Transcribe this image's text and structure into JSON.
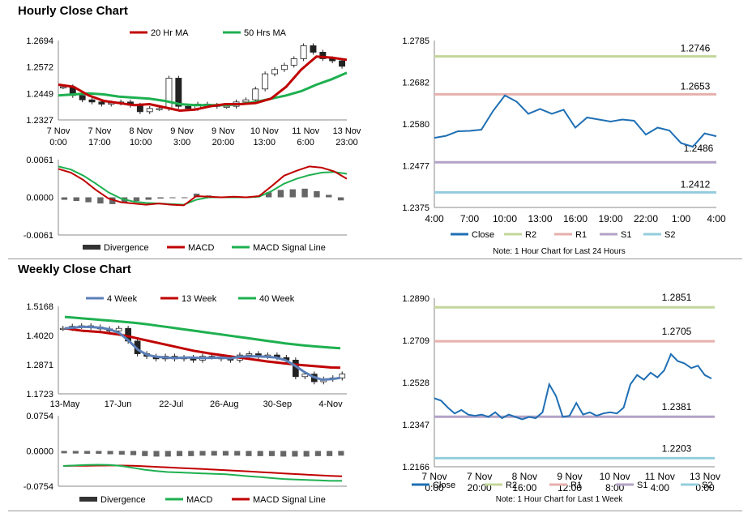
{
  "titles": {
    "hourly": "Hourly Close Chart",
    "weekly": "Weekly Close Chart"
  },
  "colors": {
    "red": "#c00000",
    "green": "#1eb050",
    "blue": "#1f6fb4",
    "dark": "#333333",
    "r2": "#c3d69b",
    "r1": "#e6b0ad",
    "s1": "#b3a2c7",
    "s2": "#93cddd",
    "steel": "#5b7fb8",
    "grey": "#666666"
  },
  "chart_data": [
    {
      "id": "hourly-price",
      "type": "candlestick",
      "yticks": [
        "1.2694",
        "1.2572",
        "1.2449",
        "1.2327"
      ],
      "ylim": [
        1.2327,
        1.2694
      ],
      "xticks": [
        [
          "7 Nov",
          "0:00"
        ],
        [
          "7 Nov",
          "17:00"
        ],
        [
          "8 Nov",
          "10:00"
        ],
        [
          "9 Nov",
          "3:00"
        ],
        [
          "9 Nov",
          "20:00"
        ],
        [
          "10 Nov",
          "13:00"
        ],
        [
          "11 Nov",
          "6:00"
        ],
        [
          "13 Nov",
          "23:00"
        ]
      ],
      "legend": [
        "20 Hr MA",
        "50 Hrs MA"
      ],
      "series": [
        {
          "name": "20 Hr MA",
          "values": [
            1.249,
            1.248,
            1.244,
            1.2415,
            1.2405,
            1.2395,
            1.24,
            1.2385,
            1.237,
            1.2375,
            1.239,
            1.24,
            1.24,
            1.2405,
            1.2425,
            1.248,
            1.256,
            1.262,
            1.2615,
            1.2605
          ]
        },
        {
          "name": "50 Hrs MA",
          "values": [
            1.244,
            1.2445,
            1.245,
            1.2445,
            1.2435,
            1.243,
            1.2425,
            1.2415,
            1.24,
            1.2395,
            1.2395,
            1.2395,
            1.24,
            1.241,
            1.2425,
            1.244,
            1.246,
            1.249,
            1.2515,
            1.2545
          ]
        }
      ],
      "close": [
        1.248,
        1.244,
        1.242,
        1.241,
        1.24,
        1.2405,
        1.241,
        1.2395,
        1.2365,
        1.238,
        1.238,
        1.252,
        1.239,
        1.238,
        1.24,
        1.2395,
        1.239,
        1.239,
        1.241,
        1.242,
        1.247,
        1.254,
        1.256,
        1.258,
        1.261,
        1.267,
        1.264,
        1.261,
        1.26,
        1.2575
      ]
    },
    {
      "id": "hourly-macd",
      "type": "bar+line",
      "yticks": [
        "0.0061",
        "0.0000",
        "-0.0061"
      ],
      "ylim": [
        -0.0061,
        0.0061
      ],
      "legend": [
        "Divergence",
        "MACD",
        "MACD Signal Line"
      ],
      "series": [
        {
          "name": "MACD",
          "values": [
            0.0046,
            0.004,
            0.0028,
            0.0012,
            -0.0002,
            -0.0008,
            -0.001,
            -0.0012,
            -0.001,
            -0.0012,
            -0.0013,
            0.0002,
            0.0001,
            0.0,
            0.0001,
            0.0,
            0.0002,
            0.0018,
            0.0035,
            0.0043,
            0.005,
            0.0048,
            0.0042,
            0.003
          ]
        },
        {
          "name": "MACD Signal Line",
          "values": [
            0.005,
            0.0045,
            0.0035,
            0.0022,
            0.0008,
            -0.0002,
            -0.0007,
            -0.0009,
            -0.001,
            -0.0011,
            -0.0012,
            -0.0004,
            0.0,
            0.0,
            0.0,
            0.0,
            0.0001,
            0.001,
            0.0022,
            0.003,
            0.0036,
            0.004,
            0.0041,
            0.0038
          ]
        },
        {
          "name": "Divergence",
          "values": [
            -0.0004,
            -0.0006,
            -0.0008,
            -0.001,
            -0.0011,
            -0.0009,
            -0.0006,
            -0.0004,
            -0.0002,
            -0.0001,
            -0.0001,
            0.0006,
            0.0003,
            0.0001,
            0.0001,
            0.0001,
            0.0002,
            0.0008,
            0.0012,
            0.0013,
            0.0014,
            0.001,
            0.0004,
            -0.0005
          ]
        }
      ]
    },
    {
      "id": "hourly-24h",
      "type": "line",
      "yticks": [
        "1.2785",
        "1.2682",
        "1.2580",
        "1.2477",
        "1.2375"
      ],
      "ylim": [
        1.2375,
        1.2785
      ],
      "xticks": [
        "4:00",
        "7:00",
        "10:00",
        "13:00",
        "16:00",
        "19:00",
        "22:00",
        "1:00",
        "4:00"
      ],
      "x": [
        "4:00",
        "5:00",
        "6:00",
        "7:00",
        "8:00",
        "9:00",
        "10:00",
        "11:00",
        "12:00",
        "13:00",
        "14:00",
        "15:00",
        "16:00",
        "17:00",
        "18:00",
        "19:00",
        "20:00",
        "21:00",
        "22:00",
        "23:00",
        "0:00",
        "1:00",
        "2:00",
        "3:00",
        "4:00"
      ],
      "levels": [
        {
          "name": "R2",
          "value": 1.2746,
          "label": "1.2746"
        },
        {
          "name": "R1",
          "value": 1.2653,
          "label": "1.2653"
        },
        {
          "name": "S1",
          "value": 1.2486,
          "label": "1.2486"
        },
        {
          "name": "S2",
          "value": 1.2412,
          "label": "1.2412"
        }
      ],
      "close": [
        1.2546,
        1.2551,
        1.2562,
        1.2563,
        1.2566,
        1.2612,
        1.265,
        1.2635,
        1.2605,
        1.2617,
        1.2605,
        1.2615,
        1.2571,
        1.2596,
        1.2591,
        1.2586,
        1.2591,
        1.2588,
        1.2554,
        1.2571,
        1.2564,
        1.2533,
        1.2524,
        1.2557,
        1.255
      ],
      "legend": [
        "Close",
        "R2",
        "R1",
        "S1",
        "S2"
      ],
      "note": "Note: 1 Hour Chart for Last 24 Hours"
    },
    {
      "id": "weekly-price",
      "type": "candlestick",
      "yticks": [
        "1.5168",
        "1.4020",
        "1.2871",
        "1.1723"
      ],
      "ylim": [
        1.1723,
        1.5168
      ],
      "xticks": [
        "13-May",
        "17-Jun",
        "22-Jul",
        "26-Aug",
        "30-Sep",
        "4-Nov"
      ],
      "legend": [
        "4 Week",
        "13 Week",
        "40 Week"
      ],
      "close": [
        1.43,
        1.438,
        1.44,
        1.435,
        1.428,
        1.42,
        1.43,
        1.38,
        1.33,
        1.32,
        1.31,
        1.32,
        1.31,
        1.315,
        1.305,
        1.32,
        1.318,
        1.31,
        1.305,
        1.325,
        1.33,
        1.32,
        1.325,
        1.315,
        1.305,
        1.24,
        1.25,
        1.22,
        1.23,
        1.235,
        1.25
      ],
      "series": [
        {
          "name": "4 Week",
          "values": [
            1.43,
            1.433,
            1.436,
            1.435,
            1.432,
            1.425,
            1.41,
            1.38,
            1.345,
            1.325,
            1.318,
            1.315,
            1.313,
            1.315,
            1.315,
            1.313,
            1.314,
            1.315,
            1.312,
            1.318,
            1.32,
            1.32,
            1.318,
            1.315,
            1.305,
            1.285,
            1.26,
            1.24,
            1.228,
            1.23,
            1.235
          ]
        },
        {
          "name": "13 Week",
          "values": [
            1.43,
            1.425,
            1.42,
            1.418,
            1.415,
            1.41,
            1.405,
            1.398,
            1.39,
            1.382,
            1.374,
            1.366,
            1.358,
            1.35,
            1.342,
            1.336,
            1.33,
            1.325,
            1.32,
            1.315,
            1.31,
            1.305,
            1.3,
            1.296,
            1.292,
            1.288,
            1.285,
            1.282,
            1.279,
            1.276,
            1.275
          ]
        },
        {
          "name": "40 Week",
          "values": [
            1.475,
            1.472,
            1.469,
            1.466,
            1.463,
            1.46,
            1.457,
            1.454,
            1.45,
            1.446,
            1.441,
            1.436,
            1.431,
            1.426,
            1.421,
            1.416,
            1.411,
            1.406,
            1.401,
            1.396,
            1.391,
            1.386,
            1.381,
            1.376,
            1.371,
            1.367,
            1.363,
            1.36,
            1.357,
            1.354,
            1.352
          ]
        }
      ]
    },
    {
      "id": "weekly-macd",
      "type": "bar+line",
      "yticks": [
        "0.0754",
        "0.0000",
        "-0.0754"
      ],
      "ylim": [
        -0.0754,
        0.0754
      ],
      "legend": [
        "Divergence",
        "MACD",
        "MACD Signal Line"
      ],
      "series": [
        {
          "name": "MACD",
          "values": [
            -0.032,
            -0.031,
            -0.03,
            -0.0295,
            -0.03,
            -0.032,
            -0.036,
            -0.04,
            -0.043,
            -0.045,
            -0.046,
            -0.047,
            -0.048,
            -0.049,
            -0.05,
            -0.052,
            -0.054,
            -0.056,
            -0.058,
            -0.06,
            -0.061,
            -0.062,
            -0.063,
            -0.064,
            -0.064
          ]
        },
        {
          "name": "MACD Signal Line",
          "values": [
            -0.032,
            -0.0318,
            -0.0315,
            -0.0312,
            -0.031,
            -0.0312,
            -0.0318,
            -0.0328,
            -0.034,
            -0.0352,
            -0.0364,
            -0.0375,
            -0.0386,
            -0.0398,
            -0.041,
            -0.0424,
            -0.0438,
            -0.0452,
            -0.0466,
            -0.048,
            -0.0494,
            -0.0508,
            -0.052,
            -0.0532,
            -0.054
          ]
        },
        {
          "name": "Divergence",
          "values": [
            -0.005,
            -0.0055,
            -0.006,
            -0.006,
            -0.007,
            -0.008,
            -0.009,
            -0.011,
            -0.012,
            -0.012,
            -0.011,
            -0.011,
            -0.01,
            -0.01,
            -0.01,
            -0.01,
            -0.011,
            -0.011,
            -0.011,
            -0.012,
            -0.012,
            -0.012,
            -0.011,
            -0.011,
            -0.01
          ]
        }
      ]
    },
    {
      "id": "weekly-1w",
      "type": "line",
      "yticks": [
        "1.2890",
        "1.2709",
        "1.2528",
        "1.2347",
        "1.2166"
      ],
      "ylim": [
        1.2166,
        1.289
      ],
      "xticks": [
        [
          "7 Nov",
          "0:00"
        ],
        [
          "7 Nov",
          "20:00"
        ],
        [
          "8 Nov",
          "16:00"
        ],
        [
          "9 Nov",
          "12:00"
        ],
        [
          "10 Nov",
          "8:00"
        ],
        [
          "11 Nov",
          "4:00"
        ],
        [
          "13 Nov",
          "0:00"
        ]
      ],
      "levels": [
        {
          "name": "R2",
          "value": 1.2851,
          "label": "1.2851"
        },
        {
          "name": "R1",
          "value": 1.2705,
          "label": "1.2705"
        },
        {
          "name": "S1",
          "value": 1.2381,
          "label": "1.2381"
        },
        {
          "name": "S2",
          "value": 1.2203,
          "label": "1.2203"
        }
      ],
      "close": [
        1.246,
        1.245,
        1.242,
        1.2395,
        1.241,
        1.239,
        1.2385,
        1.239,
        1.238,
        1.24,
        1.2375,
        1.239,
        1.238,
        1.237,
        1.238,
        1.2375,
        1.24,
        1.252,
        1.247,
        1.238,
        1.2385,
        1.244,
        1.239,
        1.24,
        1.2385,
        1.2395,
        1.24,
        1.2395,
        1.242,
        1.252,
        1.256,
        1.254,
        1.257,
        1.255,
        1.258,
        1.265,
        1.262,
        1.261,
        1.259,
        1.26,
        1.256,
        1.2545
      ],
      "legend": [
        "Close",
        "R2",
        "R1",
        "S1",
        "S2"
      ],
      "note": "Note: 1 Hour Chart for Last 1 Week"
    }
  ]
}
